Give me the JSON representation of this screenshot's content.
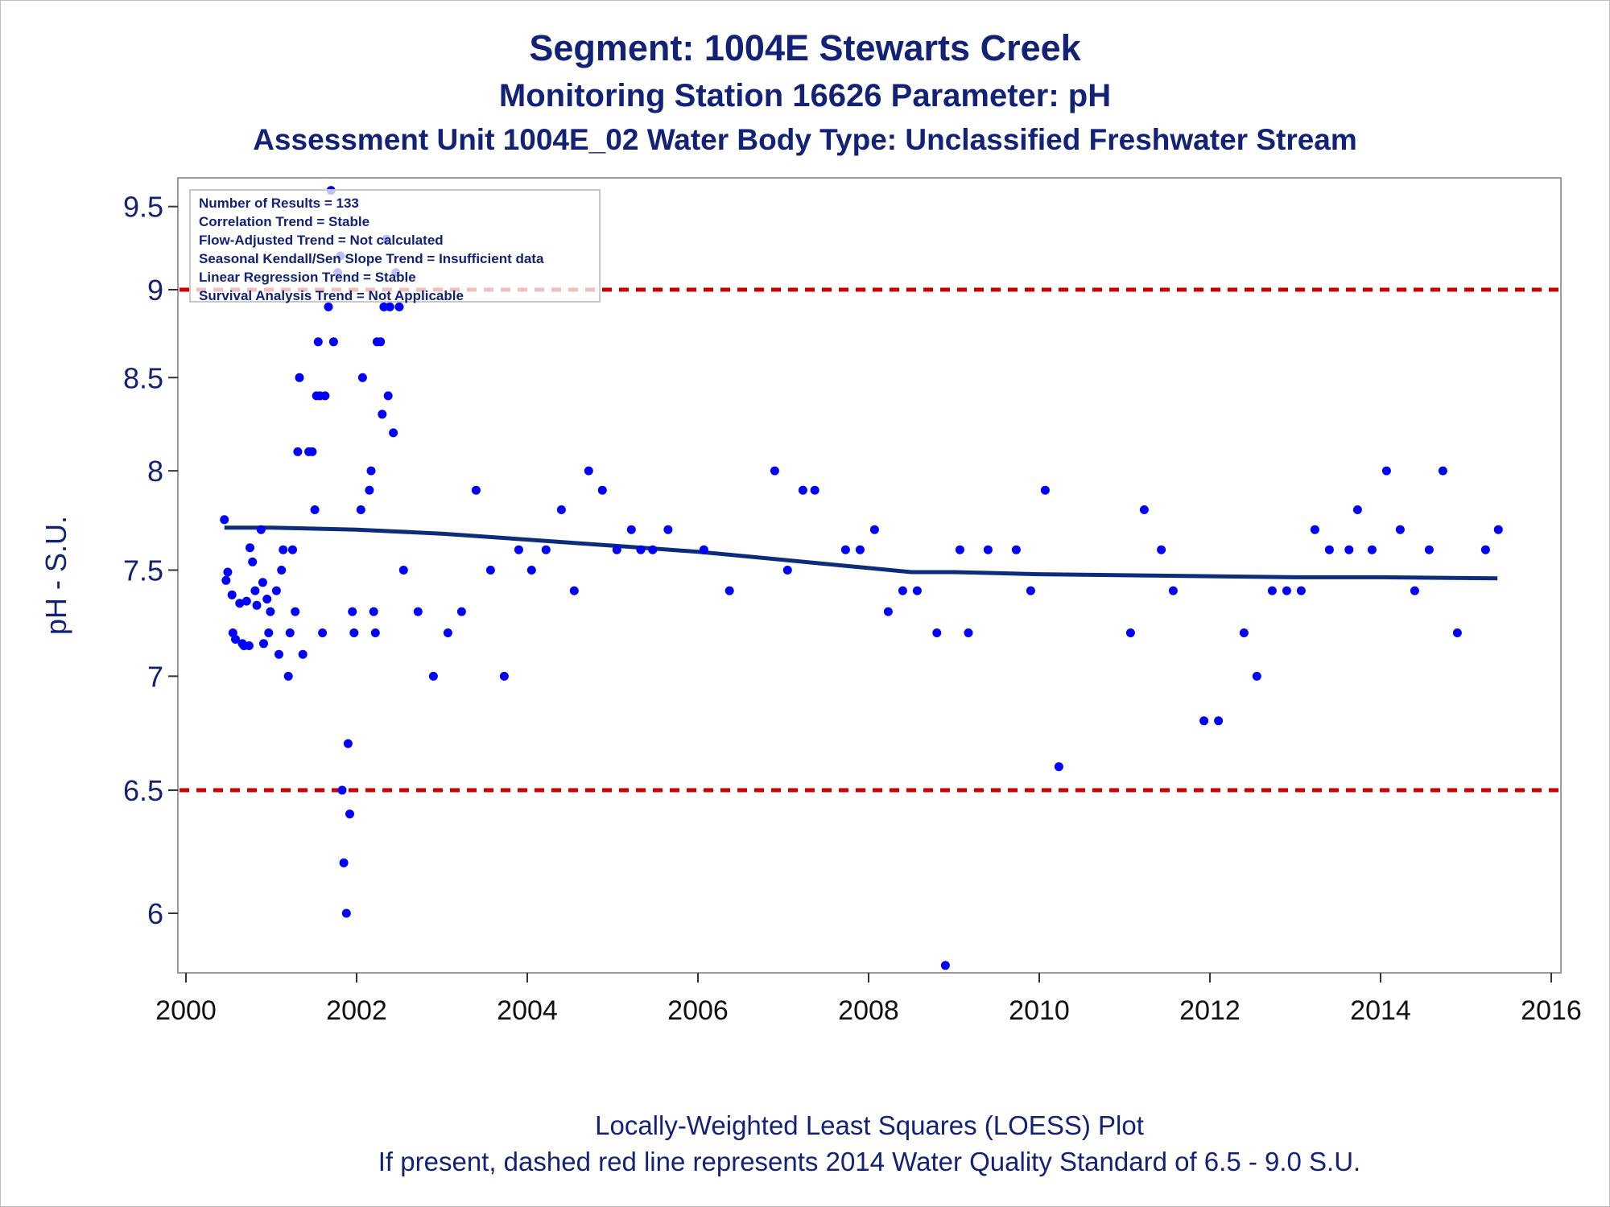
{
  "titles": {
    "line1": "Segment: 1004E  Stewarts Creek",
    "line2": "Monitoring Station 16626 Parameter: pH",
    "line3": "Assessment Unit 1004E_02   Water Body Type: Unclassified Freshwater Stream"
  },
  "footnotes": {
    "line1": "Locally-Weighted Least Squares (LOESS) Plot",
    "line2": "If present, dashed red line represents 2014 Water Quality Standard of 6.5 - 9.0 S.U."
  },
  "stats": [
    "Number of Results = 133",
    "Correlation Trend = Stable",
    "Flow-Adjusted Trend = Not calculated",
    "Seasonal Kendall/Sen Slope Trend = Insufficient data",
    "Linear Regression Trend = Stable",
    "Survival Analysis Trend = Not Applicable"
  ],
  "colors": {
    "points": "#0000ff",
    "loess": "#0b2d7a",
    "standard": "#cc0000",
    "text": "#112277"
  },
  "chart_data": {
    "type": "scatter",
    "ylabel": "pH - S.U.",
    "xlabel": "",
    "xlim": [
      2000,
      2016
    ],
    "ylim": [
      5.76,
      9.6
    ],
    "yscale": "log",
    "x_ticks": [
      2000,
      2002,
      2004,
      2006,
      2008,
      2010,
      2012,
      2014,
      2016
    ],
    "y_ticks": [
      6,
      6.5,
      7,
      7.5,
      8,
      8.5,
      9,
      9.5
    ],
    "y_tick_labels": [
      "6",
      "6.5",
      "7",
      "7.5",
      "8",
      "8.5",
      "9",
      "9.5"
    ],
    "standards": [
      6.5,
      9.0
    ],
    "points": [
      [
        2000.45,
        7.75
      ],
      [
        2000.47,
        7.45
      ],
      [
        2000.49,
        7.49
      ],
      [
        2000.54,
        7.38
      ],
      [
        2000.55,
        7.2
      ],
      [
        2000.58,
        7.17
      ],
      [
        2000.63,
        7.34
      ],
      [
        2000.66,
        7.15
      ],
      [
        2000.68,
        7.14
      ],
      [
        2000.71,
        7.35
      ],
      [
        2000.74,
        7.14
      ],
      [
        2000.75,
        7.61
      ],
      [
        2000.78,
        7.54
      ],
      [
        2000.81,
        7.4
      ],
      [
        2000.83,
        7.33
      ],
      [
        2000.88,
        7.7
      ],
      [
        2000.9,
        7.44
      ],
      [
        2000.91,
        7.15
      ],
      [
        2000.95,
        7.36
      ],
      [
        2000.97,
        7.2
      ],
      [
        2000.99,
        7.3
      ],
      [
        2001.06,
        7.4
      ],
      [
        2001.09,
        7.1
      ],
      [
        2001.12,
        7.5
      ],
      [
        2001.14,
        7.6
      ],
      [
        2001.2,
        7.0
      ],
      [
        2001.22,
        7.2
      ],
      [
        2001.25,
        7.6
      ],
      [
        2001.28,
        7.3
      ],
      [
        2001.31,
        8.1
      ],
      [
        2001.33,
        8.5
      ],
      [
        2001.37,
        7.1
      ],
      [
        2001.44,
        8.1
      ],
      [
        2001.48,
        8.1
      ],
      [
        2001.51,
        7.8
      ],
      [
        2001.53,
        8.4
      ],
      [
        2001.55,
        8.7
      ],
      [
        2001.57,
        8.4
      ],
      [
        2001.6,
        7.2
      ],
      [
        2001.63,
        8.4
      ],
      [
        2001.67,
        8.9
      ],
      [
        2001.7,
        9.6
      ],
      [
        2001.73,
        8.7
      ],
      [
        2001.78,
        9.1
      ],
      [
        2001.81,
        9.2
      ],
      [
        2001.83,
        6.5
      ],
      [
        2001.85,
        6.2
      ],
      [
        2001.88,
        6.0
      ],
      [
        2001.9,
        6.7
      ],
      [
        2001.92,
        6.4
      ],
      [
        2001.95,
        7.3
      ],
      [
        2001.97,
        7.2
      ],
      [
        2002.05,
        7.8
      ],
      [
        2002.07,
        8.5
      ],
      [
        2002.15,
        7.9
      ],
      [
        2002.17,
        8.0
      ],
      [
        2002.2,
        7.3
      ],
      [
        2002.22,
        7.2
      ],
      [
        2002.24,
        8.7
      ],
      [
        2002.28,
        8.7
      ],
      [
        2002.3,
        8.3
      ],
      [
        2002.32,
        8.9
      ],
      [
        2002.35,
        9.3
      ],
      [
        2002.37,
        8.4
      ],
      [
        2002.39,
        8.9
      ],
      [
        2002.43,
        8.2
      ],
      [
        2002.46,
        9.1
      ],
      [
        2002.5,
        8.9
      ],
      [
        2002.55,
        7.5
      ],
      [
        2002.72,
        7.3
      ],
      [
        2002.9,
        7.0
      ],
      [
        2003.07,
        7.2
      ],
      [
        2003.23,
        7.3
      ],
      [
        2003.4,
        7.9
      ],
      [
        2003.57,
        7.5
      ],
      [
        2003.73,
        7.0
      ],
      [
        2003.9,
        7.6
      ],
      [
        2004.05,
        7.5
      ],
      [
        2004.22,
        7.6
      ],
      [
        2004.4,
        7.8
      ],
      [
        2004.55,
        7.4
      ],
      [
        2004.72,
        8.0
      ],
      [
        2004.88,
        7.9
      ],
      [
        2005.05,
        7.6
      ],
      [
        2005.22,
        7.7
      ],
      [
        2005.33,
        7.6
      ],
      [
        2005.47,
        7.6
      ],
      [
        2005.65,
        7.7
      ],
      [
        2006.07,
        7.6
      ],
      [
        2006.37,
        7.4
      ],
      [
        2006.9,
        8.0
      ],
      [
        2007.05,
        7.5
      ],
      [
        2007.23,
        7.9
      ],
      [
        2007.37,
        7.9
      ],
      [
        2007.73,
        7.6
      ],
      [
        2007.9,
        7.6
      ],
      [
        2008.07,
        7.7
      ],
      [
        2008.23,
        7.3
      ],
      [
        2008.4,
        7.4
      ],
      [
        2008.57,
        7.4
      ],
      [
        2008.8,
        7.2
      ],
      [
        2008.9,
        5.8
      ],
      [
        2009.07,
        7.6
      ],
      [
        2009.17,
        7.2
      ],
      [
        2009.4,
        7.6
      ],
      [
        2009.73,
        7.6
      ],
      [
        2009.9,
        7.4
      ],
      [
        2010.07,
        7.9
      ],
      [
        2010.23,
        6.6
      ],
      [
        2011.07,
        7.2
      ],
      [
        2011.23,
        7.8
      ],
      [
        2011.43,
        7.6
      ],
      [
        2011.57,
        7.4
      ],
      [
        2011.93,
        6.8
      ],
      [
        2012.1,
        6.8
      ],
      [
        2012.4,
        7.2
      ],
      [
        2012.55,
        7.0
      ],
      [
        2012.73,
        7.4
      ],
      [
        2012.9,
        7.4
      ],
      [
        2013.07,
        7.4
      ],
      [
        2013.23,
        7.7
      ],
      [
        2013.4,
        7.6
      ],
      [
        2013.63,
        7.6
      ],
      [
        2013.73,
        7.8
      ],
      [
        2013.9,
        7.6
      ],
      [
        2014.07,
        8.0
      ],
      [
        2014.23,
        7.7
      ],
      [
        2014.4,
        7.4
      ],
      [
        2014.57,
        7.6
      ],
      [
        2014.73,
        8.0
      ],
      [
        2014.9,
        7.2
      ],
      [
        2015.23,
        7.6
      ],
      [
        2015.38,
        7.7
      ]
    ],
    "loess": {
      "x": [
        2000.45,
        2001.0,
        2002.0,
        2003.0,
        2004.0,
        2005.0,
        2006.0,
        2007.0,
        2007.5,
        2008.0,
        2008.5,
        2009.0,
        2009.5,
        2010.0,
        2011.0,
        2012.0,
        2013.0,
        2014.0,
        2015.37
      ],
      "y": [
        7.71,
        7.71,
        7.7,
        7.68,
        7.65,
        7.62,
        7.59,
        7.55,
        7.53,
        7.51,
        7.49,
        7.49,
        7.485,
        7.48,
        7.475,
        7.47,
        7.465,
        7.465,
        7.46
      ]
    }
  }
}
